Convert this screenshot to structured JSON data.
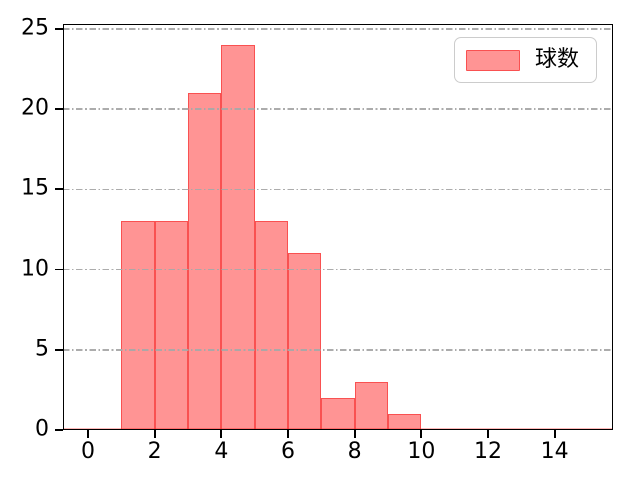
{
  "chart_data": {
    "type": "bar",
    "subtype": "histogram",
    "title": "",
    "xlabel": "",
    "ylabel": "",
    "bin_edges": [
      1,
      2,
      3,
      4,
      5,
      6,
      7,
      8,
      9,
      10
    ],
    "counts": [
      13,
      13,
      21,
      24,
      13,
      11,
      2,
      3,
      1
    ],
    "series_name": "球数",
    "xticks": [
      0,
      2,
      4,
      6,
      8,
      10,
      12,
      14
    ],
    "yticks": [
      0,
      5,
      10,
      15,
      20,
      25
    ],
    "xlim": [
      -0.75,
      15.75
    ],
    "ylim": [
      0,
      25.3
    ],
    "legend": {
      "label": "球数",
      "position": "upper right"
    },
    "grid": {
      "axis": "y",
      "style": "dashdot",
      "above_bars": true
    },
    "colors": {
      "bar_fill": "rgba(255,0,0,0.42)",
      "bar_edge": "rgba(246,44,44,0.65)",
      "bar_fill_hex_on_white": "#ff9494",
      "bar_edge_hex_divider": "#f23b3b",
      "gridline": "#a8a8a8",
      "zero_baseline": "rgba(255,100,100,0.45)",
      "legend_border": "#cccccc",
      "axis": "#000000"
    }
  }
}
